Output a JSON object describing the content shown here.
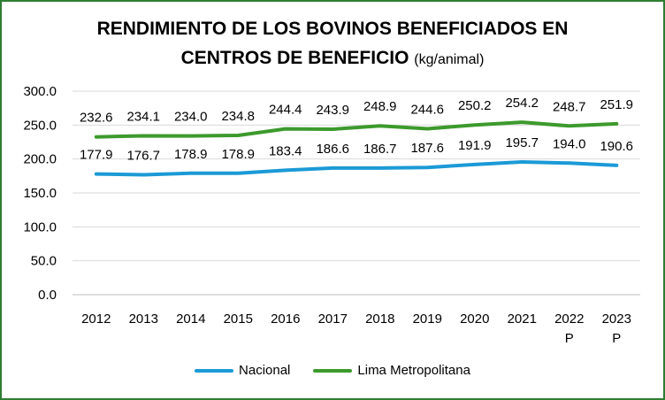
{
  "chart_data": {
    "type": "line",
    "title": "RENDIMIENTO DE LOS BOVINOS BENEFICIADOS EN",
    "title_line2": "CENTROS DE BENEFICIO",
    "title_unit": "(kg/animal)",
    "categories": [
      [
        "2012"
      ],
      [
        "2013"
      ],
      [
        "2014"
      ],
      [
        "2015"
      ],
      [
        "2016"
      ],
      [
        "2017"
      ],
      [
        "2018"
      ],
      [
        "2019"
      ],
      [
        "2020"
      ],
      [
        "2021"
      ],
      [
        "2022",
        "P"
      ],
      [
        "2023",
        "P"
      ]
    ],
    "ylim": [
      0,
      300
    ],
    "yticks": [
      "0.0",
      "50.0",
      "100.0",
      "150.0",
      "200.0",
      "250.0",
      "300.0"
    ],
    "grid": true,
    "legend_position": "bottom",
    "series": [
      {
        "name": "Nacional",
        "color": "#1b9ad6",
        "values": [
          177.9,
          176.7,
          178.9,
          178.9,
          183.4,
          186.6,
          186.7,
          187.6,
          191.9,
          195.7,
          194.0,
          190.6
        ],
        "labels": [
          "177.9",
          "176.7",
          "178.9",
          "178.9",
          "183.4",
          "186.6",
          "186.7",
          "187.6",
          "191.9",
          "195.7",
          "194.0",
          "190.6"
        ]
      },
      {
        "name": "Lima Metropolitana",
        "color": "#3c9a2c",
        "values": [
          232.6,
          234.1,
          234.0,
          234.8,
          244.4,
          243.9,
          248.9,
          244.6,
          250.2,
          254.2,
          248.7,
          251.9
        ],
        "labels": [
          "232.6",
          "234.1",
          "234.0",
          "234.8",
          "244.4",
          "243.9",
          "248.9",
          "244.6",
          "250.2",
          "254.2",
          "248.7",
          "251.9"
        ]
      }
    ]
  }
}
